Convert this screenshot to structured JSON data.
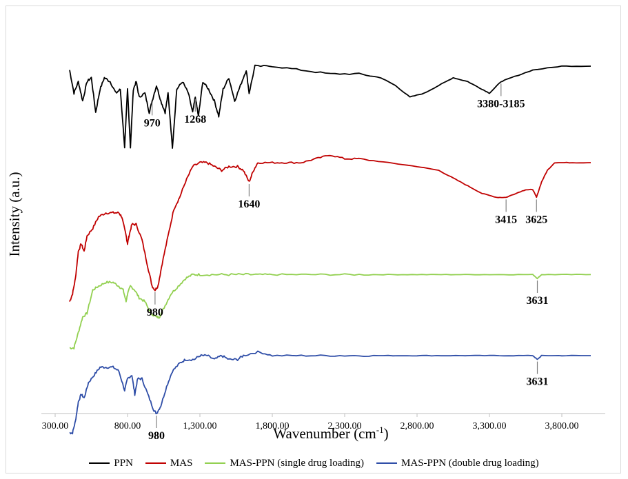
{
  "chart_data": {
    "type": "line",
    "xlabel_main": "Wavenumber (cm",
    "xlabel_sup": "-1",
    "xlabel_end": ")",
    "ylabel": "Intensity (a.u.)",
    "xlim": [
      300,
      4100
    ],
    "x_ticks": [
      "300.00",
      "800.00",
      "1,300.00",
      "1,800.00",
      "2,300.00",
      "2,800.00",
      "3,300.00",
      "3,800.00"
    ],
    "x_tick_values": [
      300,
      800,
      1300,
      1800,
      2300,
      2800,
      3300,
      3800
    ],
    "series": [
      {
        "name": "PPN",
        "color": "#000000",
        "offset": 0.89,
        "points": [
          [
            400,
            0.0
          ],
          [
            430,
            -0.06
          ],
          [
            460,
            -0.03
          ],
          [
            490,
            -0.08
          ],
          [
            520,
            -0.03
          ],
          [
            550,
            -0.02
          ],
          [
            580,
            -0.11
          ],
          [
            610,
            -0.05
          ],
          [
            640,
            -0.02
          ],
          [
            680,
            -0.03
          ],
          [
            720,
            -0.06
          ],
          [
            750,
            -0.05
          ],
          [
            780,
            -0.2
          ],
          [
            800,
            -0.05
          ],
          [
            820,
            -0.2
          ],
          [
            840,
            -0.05
          ],
          [
            860,
            -0.03
          ],
          [
            880,
            -0.07
          ],
          [
            920,
            -0.06
          ],
          [
            950,
            -0.11
          ],
          [
            970,
            -0.08
          ],
          [
            1000,
            -0.04
          ],
          [
            1030,
            -0.08
          ],
          [
            1060,
            -0.11
          ],
          [
            1080,
            -0.06
          ],
          [
            1110,
            -0.2
          ],
          [
            1140,
            -0.05
          ],
          [
            1180,
            -0.03
          ],
          [
            1220,
            -0.06
          ],
          [
            1250,
            -0.11
          ],
          [
            1268,
            -0.07
          ],
          [
            1290,
            -0.12
          ],
          [
            1320,
            -0.03
          ],
          [
            1360,
            -0.05
          ],
          [
            1400,
            -0.08
          ],
          [
            1430,
            -0.12
          ],
          [
            1460,
            -0.05
          ],
          [
            1500,
            -0.02
          ],
          [
            1540,
            -0.08
          ],
          [
            1580,
            -0.04
          ],
          [
            1620,
            -0.0
          ],
          [
            1640,
            -0.06
          ],
          [
            1680,
            0.01
          ],
          [
            1800,
            0.01
          ],
          [
            2000,
            0.0
          ],
          [
            2200,
            -0.01
          ],
          [
            2400,
            -0.01
          ],
          [
            2550,
            -0.02
          ],
          [
            2650,
            -0.04
          ],
          [
            2750,
            -0.07
          ],
          [
            2850,
            -0.06
          ],
          [
            2950,
            -0.04
          ],
          [
            3050,
            -0.02
          ],
          [
            3150,
            -0.03
          ],
          [
            3250,
            -0.05
          ],
          [
            3300,
            -0.06
          ],
          [
            3380,
            -0.03
          ],
          [
            3450,
            -0.02
          ],
          [
            3600,
            0.0
          ],
          [
            3800,
            0.01
          ],
          [
            4000,
            0.01
          ]
        ]
      },
      {
        "name": "MAS",
        "color": "#c00000",
        "offset": 0.65,
        "points": [
          [
            400,
            -0.36
          ],
          [
            420,
            -0.34
          ],
          [
            440,
            -0.3
          ],
          [
            460,
            -0.23
          ],
          [
            480,
            -0.21
          ],
          [
            500,
            -0.23
          ],
          [
            520,
            -0.19
          ],
          [
            560,
            -0.17
          ],
          [
            600,
            -0.14
          ],
          [
            650,
            -0.13
          ],
          [
            700,
            -0.13
          ],
          [
            740,
            -0.13
          ],
          [
            760,
            -0.14
          ],
          [
            790,
            -0.19
          ],
          [
            800,
            -0.21
          ],
          [
            810,
            -0.19
          ],
          [
            830,
            -0.16
          ],
          [
            860,
            -0.16
          ],
          [
            900,
            -0.2
          ],
          [
            940,
            -0.27
          ],
          [
            970,
            -0.32
          ],
          [
            990,
            -0.33
          ],
          [
            1010,
            -0.32
          ],
          [
            1040,
            -0.26
          ],
          [
            1080,
            -0.19
          ],
          [
            1120,
            -0.12
          ],
          [
            1160,
            -0.09
          ],
          [
            1200,
            -0.05
          ],
          [
            1250,
            -0.01
          ],
          [
            1300,
            0.0
          ],
          [
            1350,
            0.0
          ],
          [
            1400,
            -0.01
          ],
          [
            1450,
            -0.02
          ],
          [
            1500,
            -0.01
          ],
          [
            1560,
            -0.01
          ],
          [
            1600,
            -0.02
          ],
          [
            1640,
            -0.05
          ],
          [
            1670,
            -0.02
          ],
          [
            1700,
            0.0
          ],
          [
            1800,
            0.0
          ],
          [
            1900,
            0.0
          ],
          [
            2000,
            0.0
          ],
          [
            2100,
            0.01
          ],
          [
            2200,
            0.02
          ],
          [
            2300,
            0.01
          ],
          [
            2400,
            0.01
          ],
          [
            2600,
            0.0
          ],
          [
            2800,
            -0.01
          ],
          [
            2950,
            -0.02
          ],
          [
            3050,
            -0.04
          ],
          [
            3150,
            -0.06
          ],
          [
            3250,
            -0.08
          ],
          [
            3350,
            -0.09
          ],
          [
            3415,
            -0.09
          ],
          [
            3480,
            -0.08
          ],
          [
            3550,
            -0.07
          ],
          [
            3600,
            -0.07
          ],
          [
            3625,
            -0.09
          ],
          [
            3660,
            -0.05
          ],
          [
            3700,
            -0.02
          ],
          [
            3750,
            0.0
          ],
          [
            3850,
            0.0
          ],
          [
            4000,
            0.0
          ]
        ]
      },
      {
        "name": "MAS-PPN (single drug loading)",
        "color": "#92d050",
        "offset": 0.36,
        "points": [
          [
            400,
            -0.19
          ],
          [
            430,
            -0.19
          ],
          [
            460,
            -0.15
          ],
          [
            490,
            -0.11
          ],
          [
            520,
            -0.1
          ],
          [
            560,
            -0.04
          ],
          [
            600,
            -0.03
          ],
          [
            650,
            -0.02
          ],
          [
            700,
            -0.02
          ],
          [
            740,
            -0.03
          ],
          [
            770,
            -0.04
          ],
          [
            790,
            -0.07
          ],
          [
            800,
            -0.05
          ],
          [
            820,
            -0.03
          ],
          [
            850,
            -0.04
          ],
          [
            880,
            -0.06
          ],
          [
            920,
            -0.07
          ],
          [
            960,
            -0.1
          ],
          [
            1000,
            -0.11
          ],
          [
            1020,
            -0.11
          ],
          [
            1060,
            -0.08
          ],
          [
            1100,
            -0.05
          ],
          [
            1150,
            -0.03
          ],
          [
            1200,
            -0.01
          ],
          [
            1250,
            0.0
          ],
          [
            1300,
            0.0
          ],
          [
            1400,
            0.0
          ],
          [
            1500,
            0.0
          ],
          [
            1600,
            0.0
          ],
          [
            1700,
            0.0
          ],
          [
            1800,
            0.0
          ],
          [
            2000,
            0.0
          ],
          [
            2200,
            0.0
          ],
          [
            2400,
            0.0
          ],
          [
            2600,
            0.0
          ],
          [
            2800,
            0.0
          ],
          [
            3000,
            0.0
          ],
          [
            3200,
            0.0
          ],
          [
            3400,
            0.0
          ],
          [
            3600,
            0.0
          ],
          [
            3631,
            -0.01
          ],
          [
            3660,
            0.0
          ],
          [
            3800,
            0.0
          ],
          [
            4000,
            0.0
          ]
        ]
      },
      {
        "name": "MAS-PPN (double drug loading)",
        "color": "#2e4da7",
        "offset": 0.15,
        "points": [
          [
            400,
            -0.2
          ],
          [
            420,
            -0.2
          ],
          [
            440,
            -0.17
          ],
          [
            460,
            -0.12
          ],
          [
            480,
            -0.1
          ],
          [
            500,
            -0.11
          ],
          [
            530,
            -0.07
          ],
          [
            570,
            -0.05
          ],
          [
            610,
            -0.03
          ],
          [
            650,
            -0.03
          ],
          [
            700,
            -0.03
          ],
          [
            740,
            -0.04
          ],
          [
            780,
            -0.09
          ],
          [
            800,
            -0.06
          ],
          [
            830,
            -0.05
          ],
          [
            850,
            -0.1
          ],
          [
            870,
            -0.06
          ],
          [
            900,
            -0.06
          ],
          [
            940,
            -0.1
          ],
          [
            980,
            -0.14
          ],
          [
            1000,
            -0.15
          ],
          [
            1030,
            -0.13
          ],
          [
            1070,
            -0.08
          ],
          [
            1110,
            -0.04
          ],
          [
            1160,
            -0.02
          ],
          [
            1200,
            -0.01
          ],
          [
            1260,
            -0.01
          ],
          [
            1300,
            0.0
          ],
          [
            1350,
            0.0
          ],
          [
            1400,
            -0.01
          ],
          [
            1450,
            -0.0
          ],
          [
            1500,
            -0.01
          ],
          [
            1560,
            -0.01
          ],
          [
            1600,
            0.0
          ],
          [
            1700,
            0.01
          ],
          [
            1800,
            0.0
          ],
          [
            2000,
            0.0
          ],
          [
            2200,
            0.0
          ],
          [
            2400,
            0.0
          ],
          [
            2600,
            0.0
          ],
          [
            2800,
            0.0
          ],
          [
            3000,
            0.0
          ],
          [
            3200,
            0.0
          ],
          [
            3400,
            0.0
          ],
          [
            3600,
            0.0
          ],
          [
            3631,
            -0.01
          ],
          [
            3660,
            0.0
          ],
          [
            3800,
            0.0
          ],
          [
            4000,
            0.0
          ]
        ]
      }
    ],
    "annotations": [
      {
        "label": "970",
        "x": 970,
        "series": "PPN"
      },
      {
        "label": "1268",
        "x": 1268,
        "series": "PPN"
      },
      {
        "label": "3380-3185",
        "x": 3380,
        "series": "PPN"
      },
      {
        "label": "1640",
        "x": 1640,
        "series": "MAS"
      },
      {
        "label": "980",
        "x": 990,
        "series": "MAS"
      },
      {
        "label": "3415",
        "x": 3415,
        "series": "MAS"
      },
      {
        "label": "3625",
        "x": 3625,
        "series": "MAS"
      },
      {
        "label": "3631",
        "x": 3631,
        "series": "MAS-PPN (single drug loading)"
      },
      {
        "label": "3631",
        "x": 3631,
        "series": "MAS-PPN (double drug loading)"
      },
      {
        "label": "980",
        "x": 1000,
        "series": "MAS-PPN (double drug loading)"
      }
    ],
    "legend_position": "bottom",
    "grid": false
  }
}
